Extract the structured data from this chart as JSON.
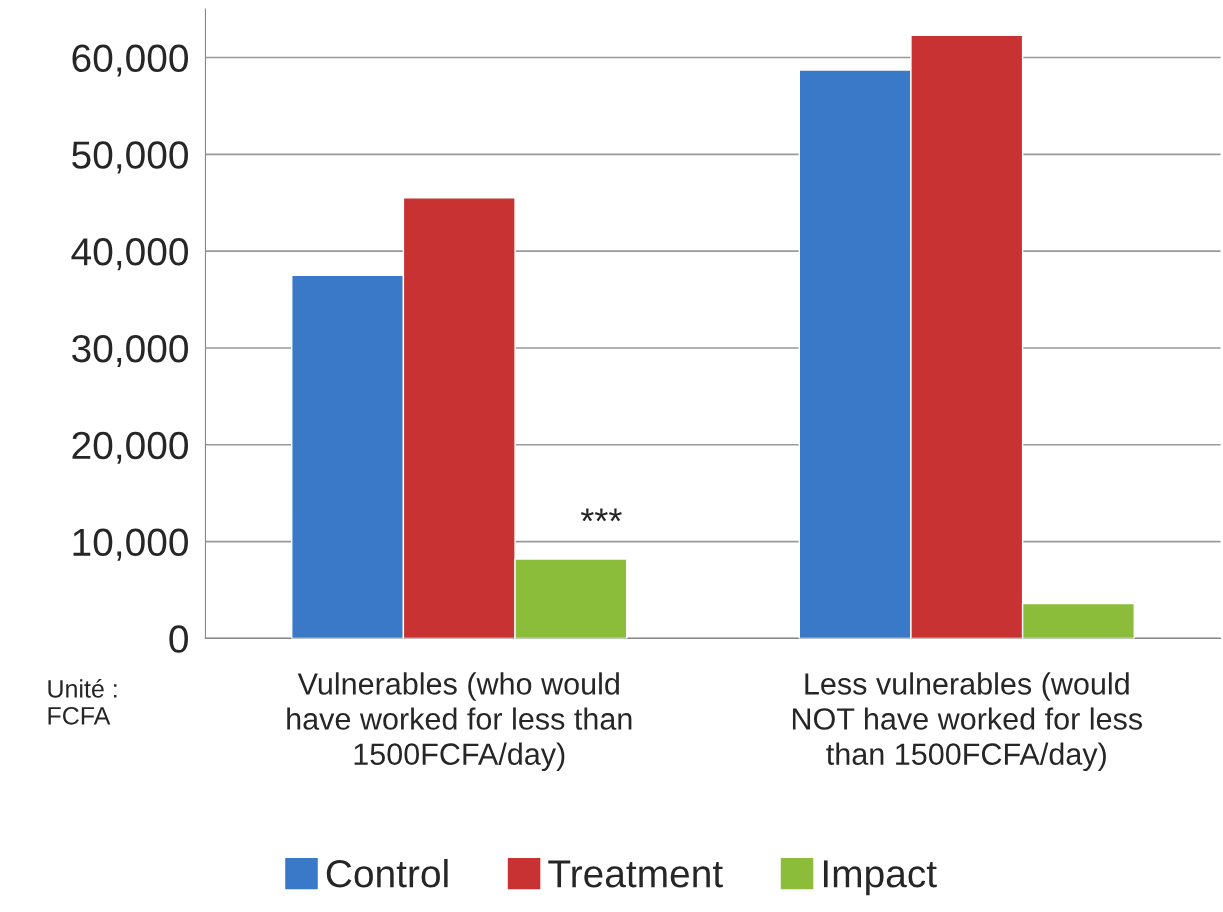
{
  "chart_data": {
    "type": "bar",
    "categories": [
      "Vulnerables (who would\nhave worked for less than\n1500FCFA/day)",
      "Less vulnerables (would\nNOT have worked for less\nthan 1500FCFA/day)"
    ],
    "series": [
      {
        "name": "Control",
        "color": "#3a78c8",
        "values": [
          37500,
          58700
        ]
      },
      {
        "name": "Treatment",
        "color": "#c83232",
        "values": [
          45500,
          62300
        ]
      },
      {
        "name": "Impact",
        "color": "#8bbd3a",
        "values": [
          8200,
          3600
        ]
      }
    ],
    "ylim": [
      0,
      65000
    ],
    "yticks": [
      {
        "value": 0,
        "label": "0"
      },
      {
        "value": 10000,
        "label": "10,000"
      },
      {
        "value": 20000,
        "label": "20,000"
      },
      {
        "value": 30000,
        "label": "30,000"
      },
      {
        "value": 40000,
        "label": "40,000"
      },
      {
        "value": 50000,
        "label": "50,000"
      },
      {
        "value": 60000,
        "label": "60,000"
      }
    ],
    "grid": "y",
    "legend": "bottom",
    "annotations": [
      "***",
      "Unité :\nFCFA"
    ]
  }
}
